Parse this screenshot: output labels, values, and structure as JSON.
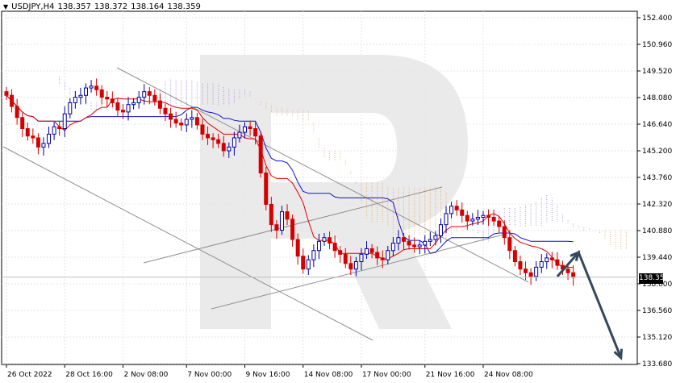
{
  "header": {
    "symbol": "USDJPY,H4",
    "open": "138.357",
    "high": "138.372",
    "low": "138.164",
    "close": "138.359"
  },
  "current_price_label": "138.359",
  "colors": {
    "candle_up": "#0000a0",
    "candle_down": "#d40000",
    "kijun": "#1010d0",
    "tenkan": "#e00000",
    "cloud_up": "#a080e0",
    "cloud_down": "#f0a060",
    "channel_lines": "#909090",
    "forecast_arrow": "#34495e",
    "watermark": "#e6e6e6"
  },
  "chart_data": {
    "type": "line",
    "title": "USDJPY,H4",
    "x_tick_labels": [
      "26 Oct 2022",
      "28 Oct 16:00",
      "2 Nov 08:00",
      "7 Nov 00:00",
      "9 Nov 16:00",
      "14 Nov 08:00",
      "17 Nov 00:00",
      "21 Nov 16:00",
      "24 Nov 08:00"
    ],
    "y_tick_labels": [
      "152.400",
      "150.960",
      "149.520",
      "148.080",
      "146.640",
      "145.200",
      "143.760",
      "142.320",
      "140.880",
      "139.440",
      "138.000",
      "136.560",
      "135.120",
      "133.680"
    ],
    "ylim": [
      133.68,
      152.4
    ],
    "n_bars": 108,
    "grid": true,
    "series": [
      {
        "name": "USDJPY close",
        "values": [
          148.2,
          147.6,
          147.0,
          146.4,
          146.0,
          145.9,
          145.4,
          145.6,
          146.1,
          146.5,
          146.4,
          147.2,
          147.8,
          148.1,
          148.2,
          148.6,
          148.7,
          148.5,
          148.1,
          148.0,
          147.8,
          147.4,
          147.3,
          147.7,
          147.8,
          148.1,
          148.4,
          148.2,
          147.9,
          147.5,
          147.2,
          146.9,
          146.7,
          146.6,
          146.9,
          147.0,
          146.6,
          146.1,
          145.9,
          145.8,
          145.6,
          145.2,
          145.4,
          145.9,
          146.2,
          146.5,
          146.4,
          146.0,
          144.0,
          142.3,
          141.2,
          140.9,
          141.9,
          141.5,
          140.4,
          139.5,
          138.8,
          139.3,
          139.8,
          140.3,
          140.5,
          140.2,
          139.8,
          139.6,
          139.1,
          138.8,
          139.2,
          139.6,
          139.9,
          139.7,
          139.4,
          139.3,
          139.8,
          140.2,
          140.5,
          140.3,
          140.1,
          140.0,
          140.1,
          140.3,
          140.4,
          140.6,
          141.2,
          141.8,
          142.2,
          142.0,
          141.7,
          141.4,
          141.5,
          141.6,
          141.7,
          141.6,
          141.4,
          141.1,
          140.5,
          139.8,
          139.2,
          138.8,
          138.6,
          138.4,
          138.9,
          139.2,
          139.4,
          139.3,
          139.0,
          138.8,
          138.6,
          138.36
        ]
      }
    ],
    "forecast_arrow": {
      "from": [
        104,
        138.4
      ],
      "via": [
        108,
        139.7
      ],
      "to": [
        116,
        134.0
      ]
    }
  }
}
